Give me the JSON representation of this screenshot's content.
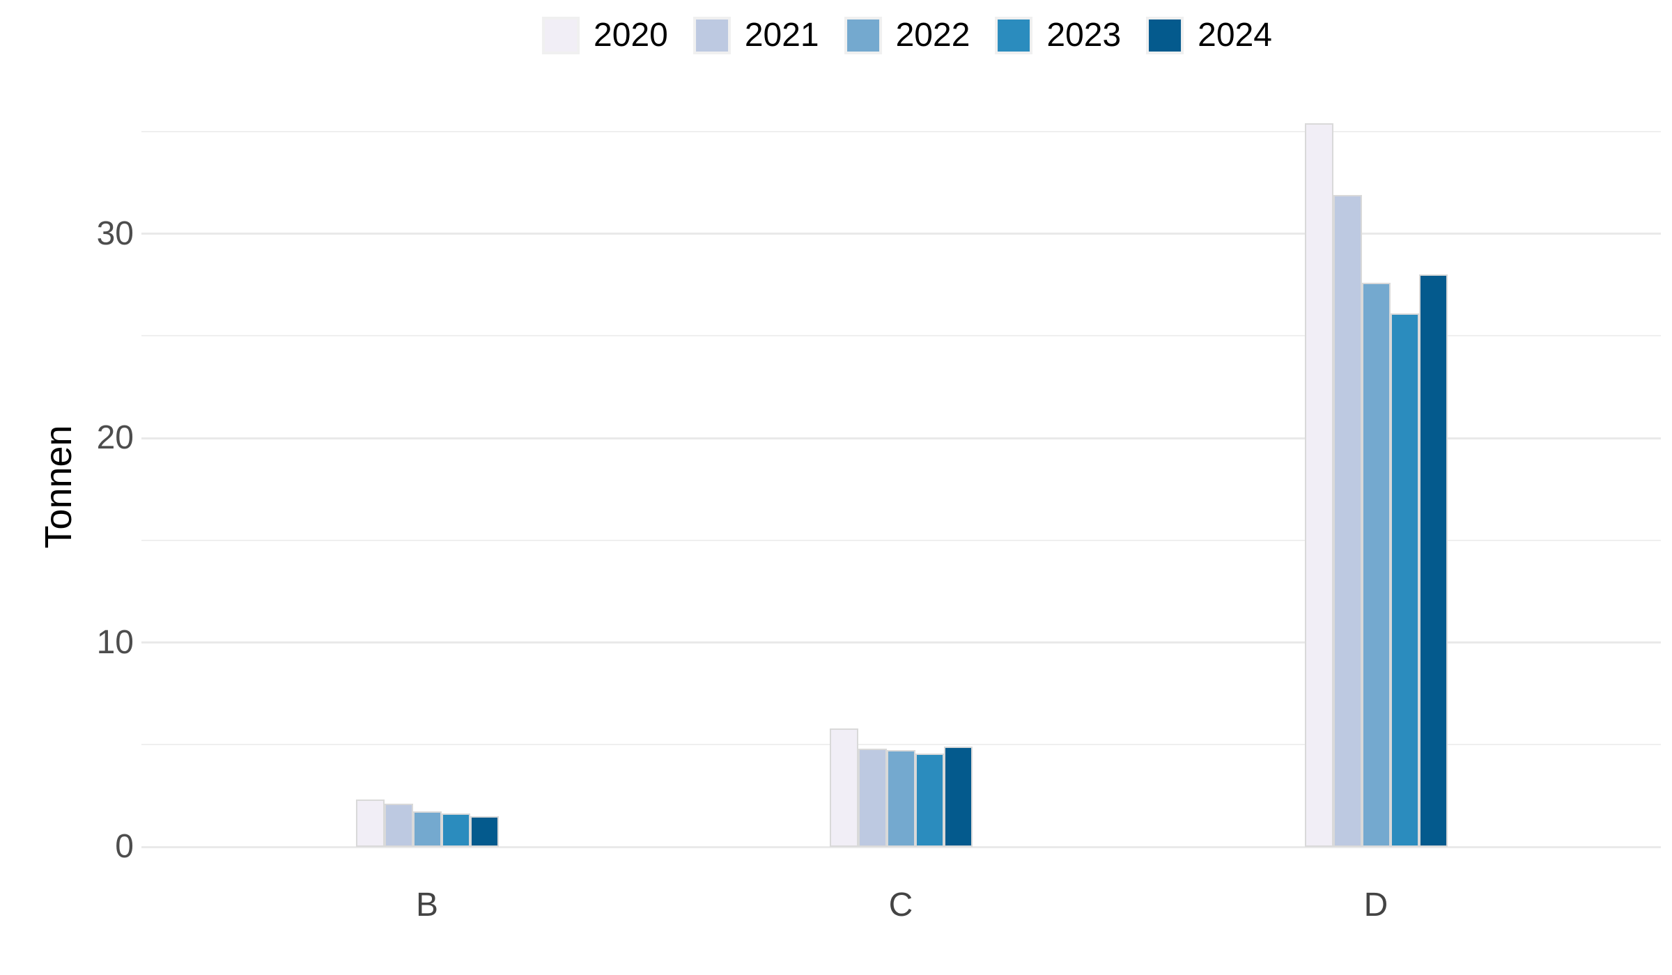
{
  "chart_data": {
    "type": "bar",
    "title": "",
    "xlabel": "",
    "ylabel": "Tonnen",
    "categories": [
      "B",
      "C",
      "D"
    ],
    "series": [
      {
        "name": "2020",
        "color": "#f1eef6",
        "values": [
          2.3,
          5.8,
          35.4
        ]
      },
      {
        "name": "2021",
        "color": "#bdc9e1",
        "values": [
          2.1,
          4.8,
          31.9
        ]
      },
      {
        "name": "2022",
        "color": "#74a9cf",
        "values": [
          1.75,
          4.75,
          27.6
        ]
      },
      {
        "name": "2023",
        "color": "#2b8cbe",
        "values": [
          1.65,
          4.55,
          26.1
        ]
      },
      {
        "name": "2024",
        "color": "#045a8d",
        "values": [
          1.5,
          4.9,
          28.0
        ]
      }
    ],
    "y_ticks": [
      0,
      10,
      20,
      30
    ],
    "y_minor_ticks": [
      5,
      15,
      25,
      35
    ],
    "ylim": [
      0,
      36
    ],
    "legend_position": "top-center",
    "grid": "horizontal",
    "background_color": "#ffffff",
    "gridline_color": "#e9e9e9",
    "axis_text_color": "#4d4d4d",
    "bar_border_color": "#d9d9d9",
    "legend_key_background": "#f0f0f0"
  }
}
